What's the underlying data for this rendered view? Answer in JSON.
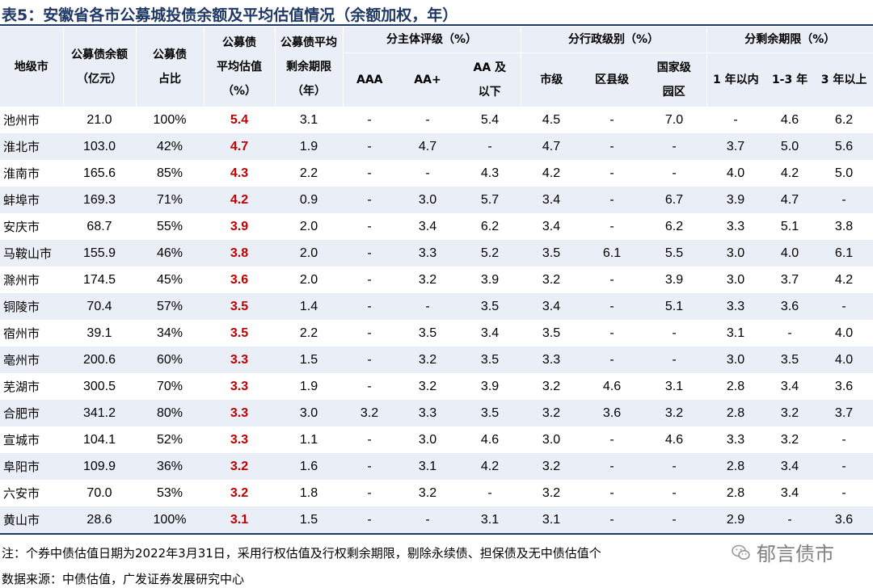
{
  "title": "表5：安徽省各市公募城投债余额及平均估值情况（余额加权，年）",
  "headers": {
    "city": "地级市",
    "balance": [
      "公募债余额",
      "（亿元）"
    ],
    "share": [
      "公募债",
      "占比"
    ],
    "avg_val": [
      "公募债",
      "平均估值",
      "（%）"
    ],
    "avg_term": [
      "公募债平均",
      "剩余期限",
      "（年）"
    ],
    "rating_group": "分主体评级（%）",
    "admin_group": "分行政级别（%）",
    "term_group": "分剩余期限（%）",
    "rating_cols": [
      [
        "AAA"
      ],
      [
        "AA+"
      ],
      [
        "AA 及",
        "以下"
      ]
    ],
    "admin_cols": [
      [
        "市级"
      ],
      [
        "区县级"
      ],
      [
        "国家级",
        "园区"
      ]
    ],
    "term_cols": [
      [
        "1 年以内"
      ],
      [
        "1-3 年"
      ],
      [
        "3 年以上"
      ]
    ]
  },
  "rows": [
    [
      "池州市",
      "21.0",
      "100%",
      "5.4",
      "3.1",
      "-",
      "-",
      "5.4",
      "4.5",
      "-",
      "7.0",
      "-",
      "4.6",
      "6.2"
    ],
    [
      "淮北市",
      "103.0",
      "42%",
      "4.7",
      "1.9",
      "-",
      "4.7",
      "-",
      "4.7",
      "-",
      "-",
      "3.7",
      "5.0",
      "5.6"
    ],
    [
      "淮南市",
      "165.6",
      "85%",
      "4.3",
      "2.2",
      "-",
      "-",
      "4.3",
      "4.2",
      "-",
      "-",
      "4.0",
      "4.2",
      "5.0"
    ],
    [
      "蚌埠市",
      "169.3",
      "71%",
      "4.2",
      "0.9",
      "-",
      "3.0",
      "5.7",
      "3.4",
      "-",
      "6.7",
      "3.9",
      "4.7",
      "-"
    ],
    [
      "安庆市",
      "68.7",
      "55%",
      "3.9",
      "2.0",
      "-",
      "3.4",
      "6.2",
      "3.4",
      "-",
      "6.2",
      "3.3",
      "5.1",
      "3.8"
    ],
    [
      "马鞍山市",
      "155.9",
      "46%",
      "3.8",
      "2.0",
      "-",
      "3.3",
      "5.2",
      "3.5",
      "6.1",
      "5.5",
      "3.0",
      "4.0",
      "6.1"
    ],
    [
      "滁州市",
      "174.5",
      "45%",
      "3.6",
      "2.0",
      "-",
      "3.2",
      "3.9",
      "3.2",
      "-",
      "3.9",
      "3.0",
      "3.7",
      "4.2"
    ],
    [
      "铜陵市",
      "70.4",
      "57%",
      "3.5",
      "1.4",
      "-",
      "-",
      "3.5",
      "3.4",
      "-",
      "5.1",
      "3.3",
      "3.6",
      "-"
    ],
    [
      "宿州市",
      "39.1",
      "34%",
      "3.5",
      "2.2",
      "-",
      "3.5",
      "3.4",
      "3.5",
      "-",
      "-",
      "3.1",
      "-",
      "4.0"
    ],
    [
      "亳州市",
      "200.6",
      "60%",
      "3.3",
      "1.5",
      "-",
      "3.2",
      "3.5",
      "3.3",
      "-",
      "-",
      "3.0",
      "3.5",
      "4.0"
    ],
    [
      "芜湖市",
      "300.5",
      "70%",
      "3.3",
      "1.9",
      "-",
      "3.2",
      "3.9",
      "3.2",
      "4.6",
      "3.1",
      "2.8",
      "3.4",
      "3.6"
    ],
    [
      "合肥市",
      "341.2",
      "80%",
      "3.3",
      "3.0",
      "3.2",
      "3.3",
      "3.5",
      "3.2",
      "3.6",
      "3.2",
      "2.8",
      "3.2",
      "3.7"
    ],
    [
      "宣城市",
      "104.1",
      "52%",
      "3.3",
      "1.1",
      "-",
      "3.0",
      "4.6",
      "3.0",
      "-",
      "4.6",
      "3.3",
      "3.2",
      "-"
    ],
    [
      "阜阳市",
      "109.9",
      "36%",
      "3.2",
      "1.6",
      "-",
      "3.1",
      "4.2",
      "3.2",
      "-",
      "-",
      "2.8",
      "3.4",
      "-"
    ],
    [
      "六安市",
      "70.0",
      "53%",
      "3.2",
      "1.8",
      "-",
      "3.2",
      "-",
      "3.2",
      "-",
      "-",
      "2.8",
      "3.4",
      "-"
    ],
    [
      "黄山市",
      "28.6",
      "100%",
      "3.1",
      "1.5",
      "-",
      "-",
      "3.1",
      "3.1",
      "-",
      "-",
      "2.9",
      "-",
      "3.6"
    ]
  ],
  "note": "注：个券中债估值日期为2022年3月31日，采用行权估值及行权剩余期限，剔除永续债、担保债及无中债估值个",
  "source": "数据来源：中债估值，广发证券发展研究中心",
  "watermark": "郁言债市",
  "colors": {
    "accent": "#c00000",
    "header_bg": "#eaeef6",
    "rule": "#1f3864"
  }
}
